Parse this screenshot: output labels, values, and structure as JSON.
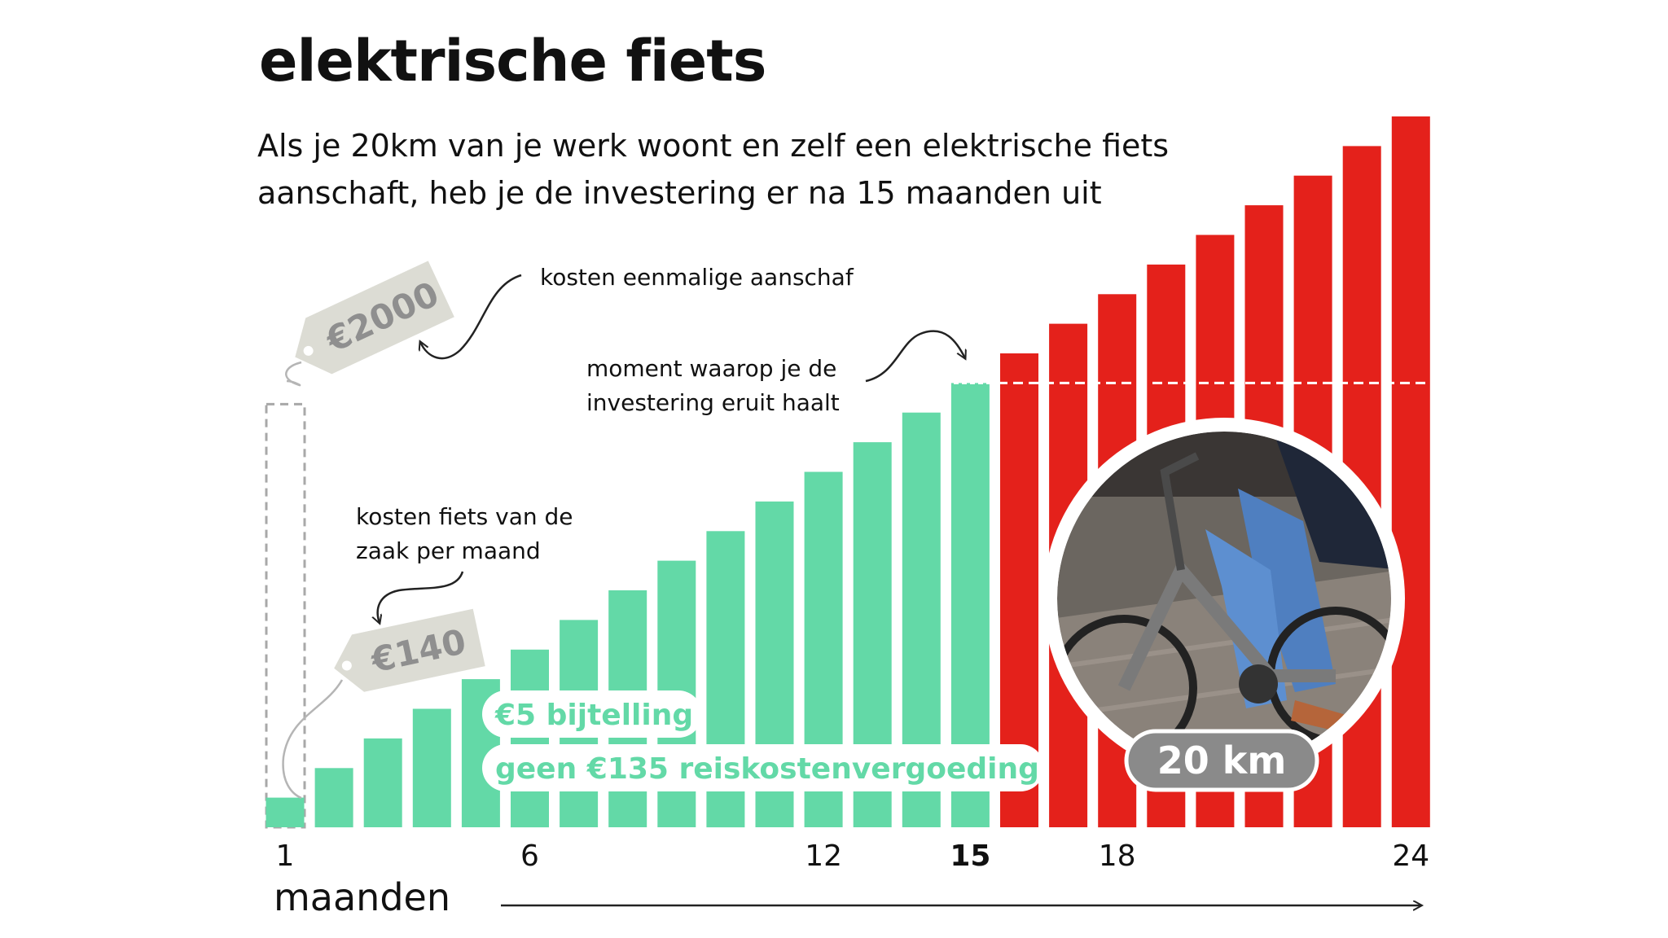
{
  "title": "elektrische fiets",
  "subtitle": "Als je 20km van je werk woont en zelf een elektrische fiets aanschaft, heb je de investering er na 15 maanden uit",
  "colors": {
    "lease": "#63d9a7",
    "own": "#e4211b",
    "tag": "#dcdcd4",
    "tag_text": "#8f8f8f",
    "badge": "#8a8a8a"
  },
  "annotations": {
    "purchase_cost": "kosten eenmalige aanschaf",
    "break_even_line1": "moment waarop je de",
    "break_even_line2": "investering eruit haalt",
    "lease_cost_line1": "kosten fiets van de",
    "lease_cost_line2": "zaak per maand"
  },
  "price_tags": {
    "purchase": "€2000",
    "monthly": "€140"
  },
  "labels": {
    "bijtelling": "€5 bijtelling",
    "vergoeding": "geen €135 reiskostenvergoeding"
  },
  "photo_badge": "20 km",
  "photo_icon": "person-cycling-electric-bike-photo",
  "chart_data": {
    "type": "bar",
    "xlabel": "maanden",
    "x": [
      1,
      2,
      3,
      4,
      5,
      6,
      7,
      8,
      9,
      10,
      11,
      12,
      13,
      14,
      15,
      16,
      17,
      18,
      19,
      20,
      21,
      22,
      23,
      24
    ],
    "tick_labels": [
      "1",
      "6",
      "12",
      "15",
      "18",
      "24"
    ],
    "highlight_tick": "15",
    "ylim": [
      0,
      3360
    ],
    "series": [
      {
        "values": [
          140,
          280,
          420,
          560,
          700,
          840,
          980,
          1120,
          1260,
          1400,
          1540,
          1680,
          1820,
          1960,
          2100,
          2240,
          2380,
          2520,
          2660,
          2800,
          2940,
          3080,
          3220,
          3360
        ]
      }
    ],
    "break_even_month": 15,
    "purchase_value": 2000,
    "grid": false,
    "legend": "none"
  }
}
